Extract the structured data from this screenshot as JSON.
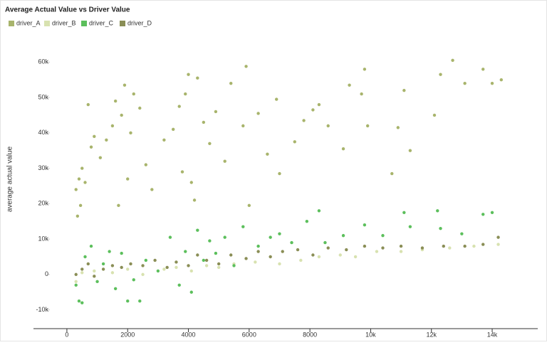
{
  "chart_data": {
    "type": "scatter",
    "title": "Average Actual Value vs Driver Value",
    "y_label": "average actual value",
    "xlim": [
      -1100,
      15500
    ],
    "ylim": [
      -15300,
      67500
    ],
    "xticks": [
      0,
      2000,
      4000,
      6000,
      8000,
      {
        "value": 10000,
        "label": "10k"
      },
      {
        "value": 12000,
        "label": "12k"
      },
      {
        "value": 14000,
        "label": "14k"
      }
    ],
    "yticks": [
      {
        "value": -10000,
        "label": "-10k"
      },
      0,
      {
        "value": 10000,
        "label": "10k"
      },
      {
        "value": 20000,
        "label": "20k"
      },
      {
        "value": 30000,
        "label": "30k"
      },
      {
        "value": 40000,
        "label": "40k"
      },
      {
        "value": 50000,
        "label": "50k"
      },
      {
        "value": 60000,
        "label": "60k"
      }
    ],
    "series": [
      {
        "name": "driver_A",
        "color": "#a8b46c",
        "x": [
          300,
          350,
          400,
          450,
          500,
          600,
          700,
          800,
          900,
          1100,
          1300,
          1500,
          1600,
          1700,
          1800,
          1900,
          2000,
          2100,
          2200,
          2400,
          2600,
          2800,
          3200,
          3500,
          3700,
          3800,
          3900,
          4000,
          4100,
          4200,
          4300,
          4500,
          4700,
          4900,
          5200,
          5400,
          5800,
          5900,
          6000,
          6300,
          6600,
          6900,
          7000,
          7500,
          7800,
          8100,
          8300,
          8600,
          9100,
          9300,
          9700,
          9800,
          9900,
          10700,
          10900,
          11100,
          11300,
          12100,
          12300,
          12700,
          13100,
          13700,
          14000,
          14300
        ],
        "y": [
          24000,
          16500,
          27000,
          19500,
          30000,
          26000,
          48000,
          36000,
          39000,
          33000,
          38000,
          42000,
          49000,
          19500,
          45000,
          53500,
          27000,
          40000,
          51000,
          47000,
          31000,
          24000,
          38000,
          41000,
          47500,
          29000,
          51000,
          56500,
          26000,
          21000,
          55500,
          43000,
          37000,
          46000,
          32000,
          54000,
          42000,
          58800,
          19500,
          45500,
          34000,
          49500,
          28500,
          37500,
          43500,
          46500,
          48000,
          42000,
          35500,
          53500,
          51000,
          58000,
          42000,
          28500,
          41500,
          52000,
          35000,
          45000,
          56500,
          60500,
          54000,
          58000,
          54000,
          55000
        ]
      },
      {
        "name": "driver_B",
        "color": "#d8e2b0",
        "x": [
          300,
          500,
          900,
          1500,
          2000,
          2500,
          3200,
          3600,
          4100,
          4600,
          5000,
          5500,
          6200,
          7000,
          7700,
          8300,
          9000,
          9500,
          10200,
          11000,
          11700,
          12600,
          13400,
          14200
        ],
        "y": [
          -2000,
          500,
          1000,
          500,
          1500,
          0,
          1500,
          2000,
          1000,
          2500,
          2000,
          3000,
          3500,
          3000,
          4000,
          5000,
          5500,
          5000,
          6500,
          6500,
          7000,
          7500,
          8000,
          8500
        ]
      },
      {
        "name": "driver_C",
        "color": "#5cbf5c",
        "x": [
          400,
          500,
          300,
          600,
          800,
          1000,
          1200,
          1400,
          1600,
          1800,
          2000,
          2200,
          2400,
          2600,
          3000,
          3400,
          3700,
          3900,
          4100,
          4300,
          4500,
          4700,
          4900,
          5200,
          5500,
          5800,
          6300,
          6700,
          7000,
          7400,
          7900,
          8300,
          8500,
          9100,
          9800,
          10400,
          11100,
          11300,
          12200,
          12300,
          13000,
          13700,
          14000
        ],
        "y": [
          -7500,
          -8000,
          -3000,
          5000,
          8000,
          -2000,
          3000,
          6500,
          -4000,
          6000,
          -7500,
          -1500,
          -7500,
          4000,
          1000,
          10500,
          -3000,
          6500,
          -5000,
          12500,
          4000,
          9500,
          6000,
          10500,
          2500,
          13500,
          8000,
          10500,
          11500,
          9000,
          15000,
          18000,
          9000,
          11000,
          14000,
          11000,
          17500,
          13500,
          18000,
          13000,
          11500,
          17000,
          17500
        ]
      },
      {
        "name": "driver_D",
        "color": "#8a8e56",
        "x": [
          300,
          500,
          700,
          900,
          1200,
          1500,
          1800,
          2100,
          2500,
          2900,
          3300,
          3600,
          4000,
          4300,
          4600,
          5000,
          5400,
          5900,
          6300,
          6700,
          7100,
          7600,
          8100,
          8600,
          9200,
          9800,
          10400,
          11000,
          11700,
          12400,
          13100,
          13700,
          14200
        ],
        "y": [
          0,
          1500,
          3000,
          -500,
          1500,
          2500,
          2000,
          3000,
          2500,
          4000,
          2000,
          3500,
          2500,
          5500,
          4000,
          3000,
          5500,
          4500,
          6500,
          5000,
          6500,
          7000,
          5500,
          7500,
          7000,
          8000,
          7500,
          8000,
          7500,
          8000,
          8000,
          8500,
          10500
        ]
      }
    ]
  }
}
